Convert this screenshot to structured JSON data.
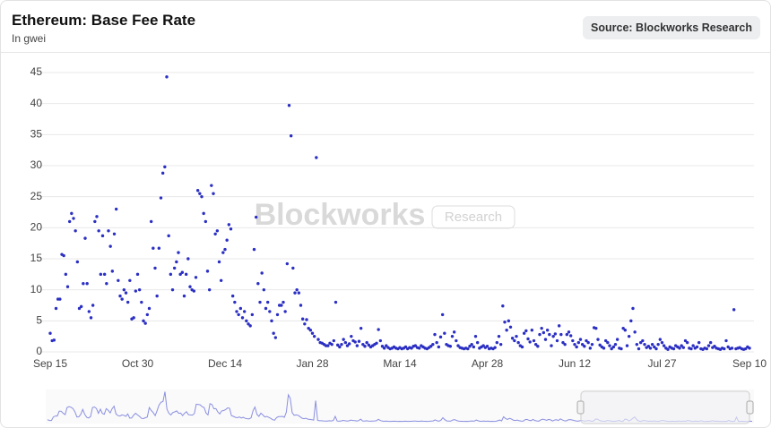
{
  "header": {
    "title": "Ethereum: Base Fee Rate",
    "subtitle": "In gwei",
    "source_button": "Source: Blockworks Research"
  },
  "watermark": {
    "brand": "Blockworks",
    "tag": "Research"
  },
  "chart_data": {
    "type": "scatter",
    "color": "#2b2fc2",
    "ylim": [
      0,
      45
    ],
    "yticks": [
      0,
      5,
      10,
      15,
      20,
      25,
      30,
      35,
      40,
      45
    ],
    "grid": true,
    "categories": [
      "Sep 15",
      null,
      null,
      null,
      null,
      null,
      null,
      null,
      null,
      null,
      null,
      null,
      null,
      null,
      null,
      null,
      null,
      null,
      null,
      null,
      null,
      null,
      null,
      null,
      null,
      null,
      null,
      null,
      null,
      null,
      null,
      null,
      null,
      null,
      null,
      null,
      null,
      null,
      null,
      null,
      null,
      null,
      null,
      null,
      null,
      "Oct 30",
      null,
      null,
      null,
      null,
      null,
      null,
      null,
      null,
      null,
      null,
      null,
      null,
      null,
      null,
      null,
      null,
      null,
      null,
      null,
      null,
      null,
      null,
      null,
      null,
      null,
      null,
      null,
      null,
      null,
      null,
      null,
      null,
      null,
      null,
      null,
      null,
      null,
      null,
      null,
      null,
      null,
      null,
      null,
      null,
      "Dec 14",
      null,
      null,
      null,
      null,
      null,
      null,
      null,
      null,
      null,
      null,
      null,
      null,
      null,
      null,
      null,
      null,
      null,
      null,
      null,
      null,
      null,
      null,
      null,
      null,
      null,
      null,
      null,
      null,
      null,
      null,
      null,
      null,
      null,
      null,
      null,
      null,
      null,
      null,
      null,
      null,
      null,
      null,
      null,
      null,
      "Jan 28",
      null,
      null,
      null,
      null,
      null,
      null,
      null,
      null,
      null,
      null,
      null,
      null,
      null,
      null,
      null,
      null,
      null,
      null,
      null,
      null,
      null,
      null,
      null,
      null,
      null,
      null,
      null,
      null,
      null,
      null,
      null,
      null,
      null,
      null,
      null,
      null,
      null,
      null,
      null,
      null,
      null,
      null,
      null,
      null,
      "Mar 14",
      null,
      null,
      null,
      null,
      null,
      null,
      null,
      null,
      null,
      null,
      null,
      null,
      null,
      null,
      null,
      null,
      null,
      null,
      null,
      null,
      null,
      null,
      null,
      null,
      null,
      null,
      null,
      null,
      null,
      null,
      null,
      null,
      null,
      null,
      null,
      null,
      null,
      null,
      null,
      null,
      null,
      null,
      null,
      null,
      "Apr 28",
      null,
      null,
      null,
      null,
      null,
      null,
      null,
      null,
      null,
      null,
      null,
      null,
      null,
      null,
      null,
      null,
      null,
      null,
      null,
      null,
      null,
      null,
      null,
      null,
      null,
      null,
      null,
      null,
      null,
      null,
      null,
      null,
      null,
      null,
      null,
      null,
      null,
      null,
      null,
      null,
      null,
      null,
      null,
      null,
      "Jun 12",
      null,
      null,
      null,
      null,
      null,
      null,
      null,
      null,
      null,
      null,
      null,
      null,
      null,
      null,
      null,
      null,
      null,
      null,
      null,
      null,
      null,
      null,
      null,
      null,
      null,
      null,
      null,
      null,
      null,
      null,
      null,
      null,
      null,
      null,
      null,
      null,
      null,
      null,
      null,
      null,
      null,
      null,
      null,
      null,
      "Jul 27",
      null,
      null,
      null,
      null,
      null,
      null,
      null,
      null,
      null,
      null,
      null,
      null,
      null,
      null,
      null,
      null,
      null,
      null,
      null,
      null,
      null,
      null,
      null,
      null,
      null,
      null,
      null,
      null,
      null,
      null,
      null,
      null,
      null,
      null,
      null,
      null,
      null,
      null,
      null,
      null,
      null,
      null,
      null,
      null,
      "Sep 10"
    ],
    "values": [
      3,
      1.8,
      1.9,
      7,
      8.5,
      8.5,
      15.7,
      15.5,
      12.5,
      10.5,
      21,
      22.3,
      21.5,
      19.5,
      14.5,
      7,
      7.3,
      11,
      18.3,
      11,
      6.5,
      5.5,
      7.5,
      21,
      21.8,
      19.5,
      12.5,
      18.7,
      12.5,
      11,
      19.5,
      17,
      13,
      19,
      23,
      11.5,
      9,
      8.5,
      10,
      9.5,
      8,
      11.5,
      5.3,
      5.5,
      9.8,
      12.5,
      10,
      8,
      5,
      4.6,
      6,
      7,
      21,
      16.7,
      13.5,
      9,
      16.7,
      24.8,
      28.8,
      29.8,
      44.3,
      18.7,
      12.5,
      10,
      13.5,
      14.5,
      16,
      12.5,
      12.8,
      9,
      12.5,
      15,
      10.5,
      10,
      9.8,
      12,
      26,
      25.5,
      25,
      22.3,
      21,
      13,
      10,
      26.8,
      25.5,
      19,
      19.5,
      14.5,
      11.5,
      16,
      16.5,
      18,
      20.5,
      19.8,
      9,
      8,
      6.5,
      6,
      7,
      5.5,
      6.5,
      5,
      4.5,
      4.2,
      6,
      16.5,
      21.7,
      11,
      8,
      12.7,
      10,
      7,
      8,
      6.5,
      5,
      3,
      2.3,
      6,
      7.5,
      7.5,
      8,
      6.5,
      14.2,
      39.7,
      34.8,
      13.5,
      9.5,
      10,
      9.5,
      7.5,
      5.3,
      4.5,
      5.2,
      3.8,
      3.5,
      3,
      2.5,
      31.3,
      2,
      1.5,
      1.4,
      1.2,
      1,
      1,
      1.4,
      1.2,
      1.8,
      8,
      1.1,
      0.8,
      1.2,
      2,
      1.5,
      1,
      1.3,
      2.5,
      1.8,
      1.6,
      1,
      1.7,
      3.8,
      1.2,
      0.9,
      1.5,
      1.1,
      0.8,
      1,
      1.2,
      1.4,
      3.6,
      1.8,
      0.9,
      0.6,
      1,
      0.7,
      0.5,
      0.6,
      0.8,
      0.6,
      0.5,
      0.7,
      0.5,
      0.6,
      0.8,
      0.5,
      0.7,
      0.6,
      0.9,
      1,
      0.7,
      0.6,
      1,
      0.8,
      0.6,
      0.5,
      0.7,
      0.9,
      1.2,
      2.8,
      1.5,
      0.8,
      2.4,
      6,
      3,
      1.2,
      1,
      0.9,
      2.5,
      3.2,
      1.8,
      1,
      0.7,
      0.6,
      0.5,
      0.6,
      0.5,
      0.9,
      1.2,
      0.8,
      2.5,
      1.5,
      0.6,
      0.8,
      1,
      0.7,
      0.9,
      0.5,
      0.6,
      0.5,
      0.7,
      1.5,
      2.5,
      1.2,
      7.4,
      4.8,
      3.5,
      5,
      4,
      2.2,
      1.8,
      2.5,
      1.5,
      1,
      0.8,
      3,
      3.4,
      2.1,
      1.6,
      3.5,
      1.8,
      1.2,
      0.9,
      2.8,
      3.8,
      3.1,
      2,
      3.5,
      2.8,
      1,
      2.5,
      2.9,
      1.8,
      4.2,
      2.8,
      1.5,
      1.2,
      2.8,
      3.2,
      2.6,
      1.8,
      1.2,
      0.8,
      1.5,
      2,
      1.2,
      0.9,
      1.8,
      1.5,
      0.6,
      1.2,
      3.9,
      3.8,
      2,
      1.1,
      0.8,
      0.6,
      1.8,
      1.5,
      1,
      0.5,
      0.8,
      1.2,
      2,
      0.6,
      0.5,
      3.8,
      3.5,
      1,
      2.5,
      5,
      7,
      3.2,
      1.2,
      0.5,
      1.5,
      1.8,
      1.2,
      0.7,
      0.9,
      0.6,
      1.2,
      0.8,
      0.5,
      1.2,
      2,
      1.5,
      1,
      0.6,
      0.4,
      0.8,
      0.6,
      0.5,
      1,
      0.8,
      0.6,
      1,
      0.7,
      1.8,
      1.5,
      0.6,
      0.5,
      1,
      0.6,
      0.8,
      1.5,
      0.5,
      0.4,
      0.6,
      0.5,
      1,
      1.5,
      0.7,
      0.9,
      0.6,
      0.5,
      0.4,
      0.6,
      0.5,
      1.8,
      0.8,
      0.5,
      0.6,
      6.8,
      0.5,
      0.6,
      0.7,
      0.5,
      0.4,
      0.5,
      0.8,
      0.6
    ]
  }
}
